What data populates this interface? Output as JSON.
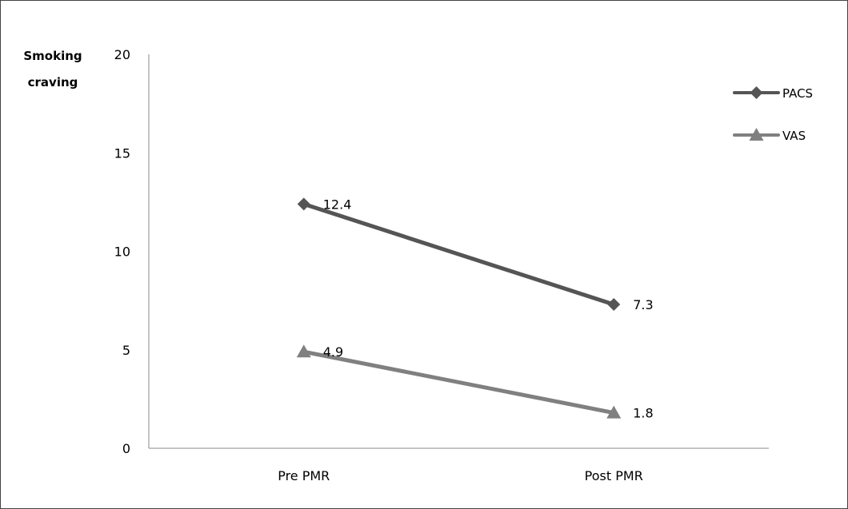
{
  "chart_data": {
    "type": "line",
    "title": "",
    "xlabel": "",
    "ylabel": "Smoking craving",
    "ylabel_lines": [
      "Smoking",
      "craving"
    ],
    "categories": [
      "Pre PMR",
      "Post PMR"
    ],
    "ylim": [
      0,
      20
    ],
    "yticks": [
      0,
      5,
      10,
      15,
      20
    ],
    "grid": false,
    "legend_position": "top-right",
    "series": [
      {
        "name": "PACS",
        "values": [
          12.4,
          7.3
        ],
        "labels": [
          "12.4",
          "7.3"
        ],
        "marker": "diamond",
        "color": "#555555"
      },
      {
        "name": "VAS",
        "values": [
          4.9,
          1.8
        ],
        "labels": [
          "4.9",
          "1.8"
        ],
        "marker": "triangle",
        "color": "#808080"
      }
    ]
  }
}
